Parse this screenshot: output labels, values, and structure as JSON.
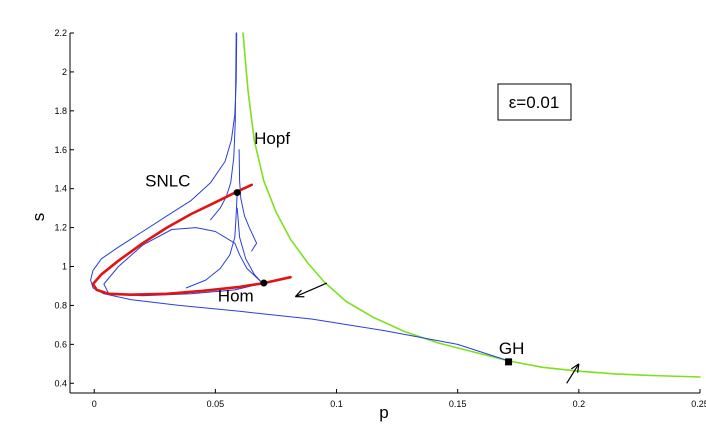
{
  "chart_data": {
    "type": "line",
    "title": "",
    "xlabel": "p",
    "ylabel": "s",
    "xlim": [
      -0.01,
      0.25
    ],
    "ylim": [
      0.35,
      2.2
    ],
    "xticks": [
      0,
      0.05,
      0.1,
      0.15,
      0.2,
      0.25
    ],
    "xtick_labels": [
      "0",
      "0.05",
      "0.1",
      "0.15",
      "0.2",
      "0.25"
    ],
    "yticks": [
      0.4,
      0.6,
      0.8,
      1,
      1.2,
      1.4,
      1.6,
      1.8,
      2,
      2.2
    ],
    "ytick_labels": [
      "0.4",
      "0.6",
      "0.8",
      "1",
      "1.2",
      "1.4",
      "1.6",
      "1.8",
      "2",
      "2.2"
    ],
    "grid": false,
    "colors": {
      "hopf": "#7ee01e",
      "blue": "#2a3fdc",
      "hom": "#e01414",
      "point": "#000000"
    },
    "series": [
      {
        "name": "Hopf",
        "color": "#7ee01e",
        "width": 1.6,
        "points": [
          [
            0.0614,
            2.2
          ],
          [
            0.0635,
            1.9
          ],
          [
            0.066,
            1.65
          ],
          [
            0.07,
            1.44
          ],
          [
            0.075,
            1.28
          ],
          [
            0.081,
            1.14
          ],
          [
            0.088,
            1.02
          ],
          [
            0.095,
            0.92
          ],
          [
            0.104,
            0.82
          ],
          [
            0.115,
            0.74
          ],
          [
            0.128,
            0.666
          ],
          [
            0.142,
            0.607
          ],
          [
            0.158,
            0.556
          ],
          [
            0.171,
            0.515
          ],
          [
            0.185,
            0.482
          ],
          [
            0.2,
            0.462
          ],
          [
            0.215,
            0.448
          ],
          [
            0.23,
            0.44
          ],
          [
            0.25,
            0.432
          ]
        ]
      },
      {
        "name": "SNLC",
        "color": "#2a3fdc",
        "width": 1,
        "points": [
          [
            0.0588,
            2.2
          ],
          [
            0.0586,
            1.95
          ],
          [
            0.058,
            1.78
          ],
          [
            0.0566,
            1.65
          ],
          [
            0.054,
            1.54
          ],
          [
            0.048,
            1.43
          ],
          [
            0.04,
            1.34
          ],
          [
            0.03,
            1.26
          ],
          [
            0.02,
            1.18
          ],
          [
            0.01,
            1.1
          ],
          [
            0.003,
            1.04
          ],
          [
            -0.0005,
            0.98
          ],
          [
            -0.0015,
            0.93
          ],
          [
            -0.0005,
            0.89
          ],
          [
            0.004,
            0.86
          ],
          [
            0.015,
            0.83
          ],
          [
            0.035,
            0.8
          ],
          [
            0.06,
            0.77
          ],
          [
            0.09,
            0.73
          ],
          [
            0.12,
            0.67
          ],
          [
            0.15,
            0.6
          ],
          [
            0.171,
            0.515
          ]
        ]
      },
      {
        "name": "",
        "color": "#2a3fdc",
        "width": 1,
        "points": [
          [
            0.0586,
            2.2
          ],
          [
            0.0584,
            1.95
          ],
          [
            0.0582,
            1.75
          ],
          [
            0.0576,
            1.56
          ],
          [
            0.0563,
            1.43
          ],
          [
            0.0545,
            1.36
          ],
          [
            0.052,
            1.3
          ],
          [
            0.048,
            1.24
          ]
        ]
      },
      {
        "name": "",
        "color": "#2a3fdc",
        "width": 1,
        "points": [
          [
            0.0598,
            1.6
          ],
          [
            0.06,
            1.44
          ],
          [
            0.0605,
            1.35
          ],
          [
            0.062,
            1.26
          ],
          [
            0.064,
            1.2
          ],
          [
            0.067,
            1.12
          ],
          [
            0.065,
            1.08
          ]
        ]
      },
      {
        "name": "",
        "color": "#2a3fdc",
        "width": 1,
        "points": [
          [
            0.059,
            1.38
          ],
          [
            0.0585,
            1.25
          ],
          [
            0.058,
            1.15
          ],
          [
            0.056,
            1.06
          ],
          [
            0.052,
            0.99
          ],
          [
            0.046,
            0.93
          ],
          [
            0.038,
            0.89
          ]
        ]
      },
      {
        "name": "",
        "color": "#2a3fdc",
        "width": 1,
        "points": [
          [
            0.059,
            1.3
          ],
          [
            0.06,
            1.15
          ],
          [
            0.0625,
            1.04
          ],
          [
            0.066,
            0.96
          ],
          [
            0.069,
            0.92
          ]
        ]
      },
      {
        "name": "",
        "color": "#2a3fdc",
        "width": 1,
        "points": [
          [
            0.069,
            0.92
          ],
          [
            0.063,
            0.99
          ],
          [
            0.06,
            1.06
          ],
          [
            0.058,
            1.12
          ],
          [
            0.05,
            1.18
          ],
          [
            0.042,
            1.2
          ],
          [
            0.032,
            1.19
          ],
          [
            0.02,
            1.11
          ],
          [
            0.01,
            1.0
          ],
          [
            0.004,
            0.91
          ],
          [
            0.006,
            0.86
          ],
          [
            0.02,
            0.85
          ],
          [
            0.04,
            0.86
          ],
          [
            0.058,
            0.88
          ],
          [
            0.07,
            0.915
          ]
        ]
      },
      {
        "name": "Hom",
        "color": "#e01414",
        "width": 2.6,
        "points": [
          [
            0.065,
            1.42
          ],
          [
            0.059,
            1.385
          ],
          [
            0.05,
            1.33
          ],
          [
            0.04,
            1.27
          ],
          [
            0.03,
            1.2
          ],
          [
            0.02,
            1.12
          ],
          [
            0.01,
            1.03
          ],
          [
            0.003,
            0.96
          ],
          [
            -0.0005,
            0.91
          ],
          [
            0.001,
            0.88
          ],
          [
            0.006,
            0.86
          ],
          [
            0.015,
            0.855
          ],
          [
            0.03,
            0.86
          ],
          [
            0.045,
            0.875
          ],
          [
            0.06,
            0.895
          ],
          [
            0.07,
            0.915
          ],
          [
            0.081,
            0.945
          ]
        ]
      }
    ],
    "points": [
      {
        "p": 0.059,
        "s": 1.38,
        "marker": "circle"
      },
      {
        "p": 0.07,
        "s": 0.915,
        "marker": "circle"
      },
      {
        "p": 0.171,
        "s": 0.51,
        "marker": "square"
      }
    ],
    "arrows": [
      {
        "from": [
          0.096,
          0.915
        ],
        "to": [
          0.083,
          0.845
        ]
      },
      {
        "from": [
          0.195,
          0.4
        ],
        "to": [
          0.2,
          0.5
        ]
      }
    ],
    "annotations": [
      {
        "text": "Hopf",
        "p": 0.066,
        "s": 1.63
      },
      {
        "text": "SNLC",
        "p": 0.021,
        "s": 1.41
      },
      {
        "text": "Hom",
        "p": 0.051,
        "s": 0.82
      },
      {
        "text": "GH",
        "p": 0.167,
        "s": 0.55
      }
    ],
    "legend_box": {
      "text": "ε=0.01",
      "placement": "top-right"
    }
  }
}
